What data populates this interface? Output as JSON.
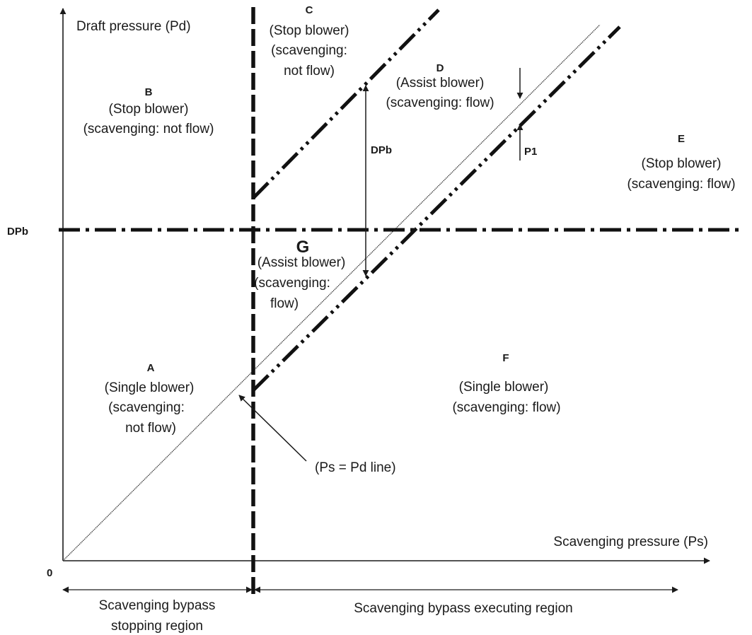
{
  "axes": {
    "y_label": "Draft pressure (Pd)",
    "x_label": "Scavenging pressure (Ps)",
    "origin_label": "0",
    "dpb_axis_label": "DPb"
  },
  "regions": {
    "A": {
      "letter": "A",
      "lines": [
        "(Single blower)",
        "(scavenging:",
        "not flow)"
      ]
    },
    "B": {
      "letter": "B",
      "lines": [
        "(Stop blower)",
        "(scavenging: not flow)"
      ]
    },
    "C": {
      "letter": "C",
      "lines": [
        "(Stop blower)",
        "(scavenging:",
        "not flow)"
      ]
    },
    "D": {
      "letter": "D",
      "lines": [
        "(Assist blower)",
        "(scavenging: flow)"
      ]
    },
    "E": {
      "letter": "E",
      "lines": [
        "(Stop blower)",
        "(scavenging: flow)"
      ]
    },
    "F": {
      "letter": "F",
      "lines": [
        "(Single blower)",
        "(scavenging: flow)"
      ]
    },
    "G": {
      "letter": "G",
      "lines": [
        "(Assist blower)",
        "(scavenging:",
        "flow)"
      ]
    }
  },
  "annotations": {
    "dpb_arrow": "DPb",
    "p1_arrow": "P1",
    "ps_pd_line": "(Ps = Pd line)"
  },
  "bottom_regions": {
    "stopping": [
      "Scavenging bypass",
      "stopping region"
    ],
    "executing": "Scavenging bypass executing region"
  }
}
